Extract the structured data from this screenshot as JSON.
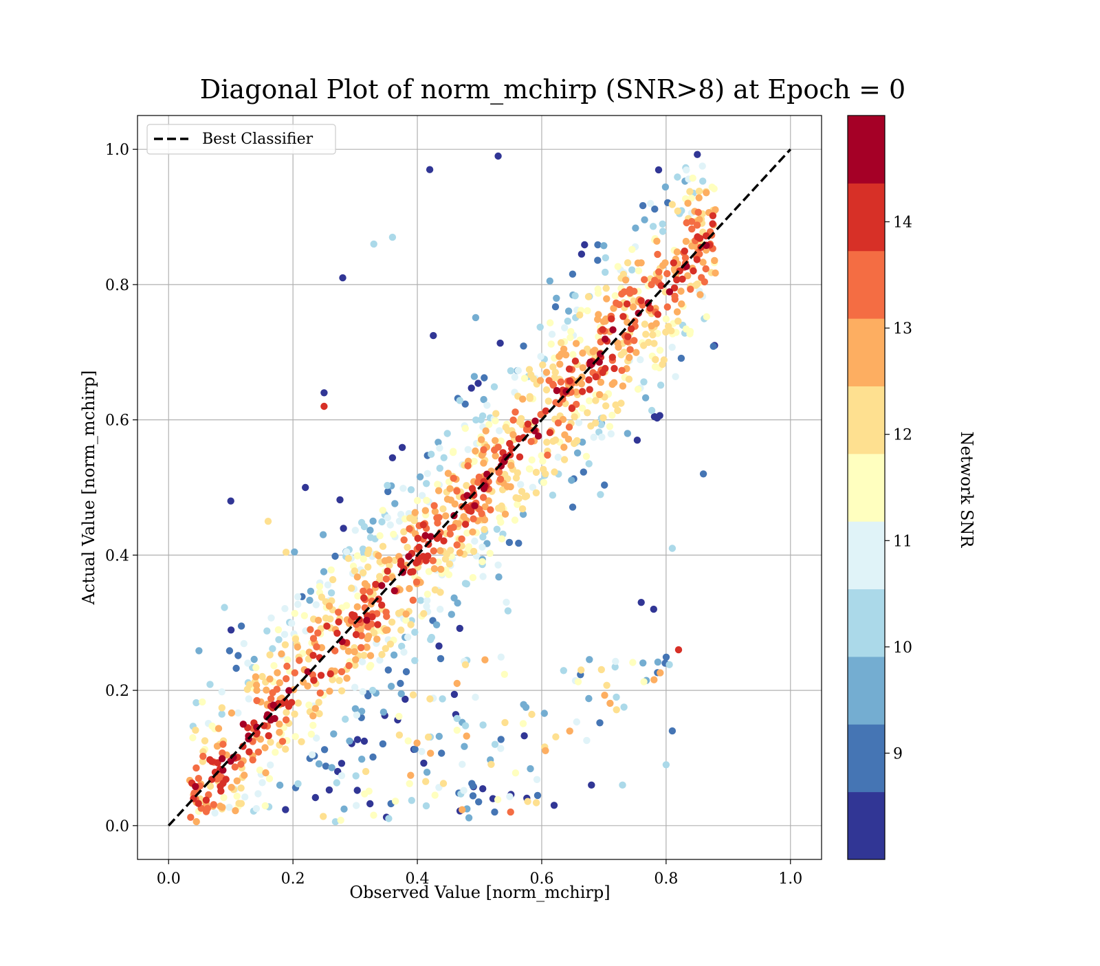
{
  "chart_data": {
    "type": "scatter",
    "title": "Diagonal Plot of norm_mchirp (SNR>8) at Epoch = 0",
    "xlabel": "Observed Value [norm_mchirp]",
    "ylabel": "Actual Value [norm_mchirp]",
    "xlim": [
      -0.05,
      1.05
    ],
    "ylim": [
      -0.05,
      1.05
    ],
    "xticks": [
      "0.0",
      "0.2",
      "0.4",
      "0.6",
      "0.8",
      "1.0"
    ],
    "yticks": [
      "0.0",
      "0.2",
      "0.4",
      "0.6",
      "0.8",
      "1.0"
    ],
    "grid": true,
    "legend": {
      "placement": "top-left",
      "entries": [
        "Best Classifier"
      ]
    },
    "reference_line": {
      "name": "Best Classifier",
      "style": "dashed",
      "color": "#000000",
      "x": [
        0.0,
        1.0
      ],
      "y": [
        0.0,
        1.0
      ]
    },
    "colorbar": {
      "label": "Network SNR",
      "range": [
        8,
        15
      ],
      "ticks": [
        "9",
        "10",
        "11",
        "12",
        "13",
        "14"
      ],
      "colors": [
        "#313695",
        "#4575b4",
        "#74add1",
        "#abd9e9",
        "#e0f3f8",
        "#ffffbf",
        "#fee090",
        "#fdae61",
        "#f46d43",
        "#d73027",
        "#a50026"
      ]
    },
    "scatter_point_count": 1800,
    "series": [
      {
        "points_sample": [
          [
            0.1,
            0.48,
            8.2
          ],
          [
            0.16,
            0.45,
            12.0
          ],
          [
            0.25,
            0.64,
            8.5
          ],
          [
            0.25,
            0.62,
            14.0
          ],
          [
            0.28,
            0.81,
            8.3
          ],
          [
            0.22,
            0.5,
            8.4
          ],
          [
            0.33,
            0.86,
            10.5
          ],
          [
            0.36,
            0.87,
            10.0
          ],
          [
            0.42,
            0.97,
            8.5
          ],
          [
            0.53,
            0.99,
            8.3
          ],
          [
            0.76,
            0.33,
            8.6
          ],
          [
            0.78,
            0.32,
            8.3
          ],
          [
            0.82,
            0.26,
            14.0
          ],
          [
            0.81,
            0.14,
            9.0
          ],
          [
            0.8,
            0.09,
            10.0
          ],
          [
            0.73,
            0.06,
            10.0
          ],
          [
            0.68,
            0.06,
            8.3
          ],
          [
            0.55,
            0.02,
            13.5
          ],
          [
            0.04,
            0.04,
            14.2
          ],
          [
            0.86,
            0.52,
            9.2
          ],
          [
            0.81,
            0.41,
            10.5
          ],
          [
            0.72,
            0.19,
            10.5
          ],
          [
            0.62,
            0.03,
            8.4
          ],
          [
            0.12,
            0.15,
            14.5
          ]
        ]
      }
    ]
  }
}
